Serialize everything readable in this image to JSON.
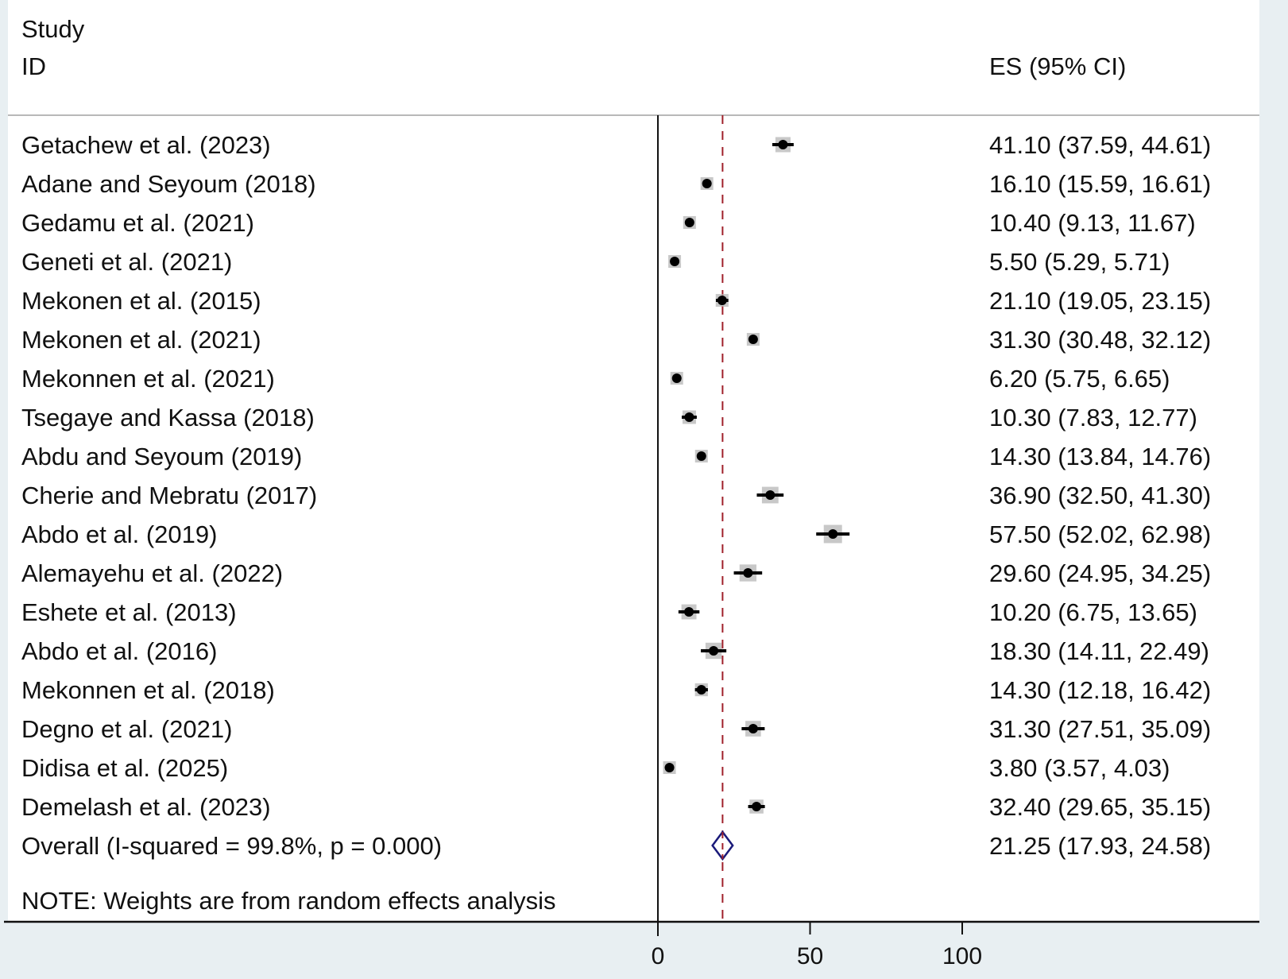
{
  "chart_data": {
    "type": "forest",
    "header": {
      "study_label_line1": "Study",
      "study_label_line2": "ID",
      "es_label": "ES (95% CI)"
    },
    "xlim": [
      0,
      100
    ],
    "x_ticks": [
      0,
      50,
      100
    ],
    "x_tick_labels": [
      "0",
      "50",
      "100"
    ],
    "null_line": 0,
    "overall_line": 21.25,
    "studies": [
      {
        "label": "Getachew et al. (2023)",
        "es": 41.1,
        "lo": 37.59,
        "hi": 44.61,
        "text": "41.10 (37.59, 44.61)"
      },
      {
        "label": "Adane and Seyoum (2018)",
        "es": 16.1,
        "lo": 15.59,
        "hi": 16.61,
        "text": "16.10 (15.59, 16.61)"
      },
      {
        "label": "Gedamu et al.  (2021)",
        "es": 10.4,
        "lo": 9.13,
        "hi": 11.67,
        "text": "10.40 (9.13, 11.67)"
      },
      {
        "label": "Geneti et al. (2021)",
        "es": 5.5,
        "lo": 5.29,
        "hi": 5.71,
        "text": "5.50 (5.29, 5.71)"
      },
      {
        "label": "Mekonen et al. (2015)",
        "es": 21.1,
        "lo": 19.05,
        "hi": 23.15,
        "text": "21.10 (19.05, 23.15)"
      },
      {
        "label": "Mekonen et al.  (2021)",
        "es": 31.3,
        "lo": 30.48,
        "hi": 32.12,
        "text": "31.30 (30.48, 32.12)"
      },
      {
        "label": "Mekonnen et al.  (2021)",
        "es": 6.2,
        "lo": 5.75,
        "hi": 6.65,
        "text": "6.20 (5.75, 6.65)"
      },
      {
        "label": "Tsegaye and Kassa (2018)",
        "es": 10.3,
        "lo": 7.83,
        "hi": 12.77,
        "text": "10.30 (7.83, 12.77)"
      },
      {
        "label": "Abdu and Seyoum (2019)",
        "es": 14.3,
        "lo": 13.84,
        "hi": 14.76,
        "text": "14.30 (13.84, 14.76)"
      },
      {
        "label": "Cherie and Mebratu (2017)",
        "es": 36.9,
        "lo": 32.5,
        "hi": 41.3,
        "text": "36.90 (32.50, 41.30)"
      },
      {
        "label": "Abdo et al.  (2019)",
        "es": 57.5,
        "lo": 52.02,
        "hi": 62.98,
        "text": "57.50 (52.02, 62.98)"
      },
      {
        "label": "Alemayehu et al. (2022)",
        "es": 29.6,
        "lo": 24.95,
        "hi": 34.25,
        "text": "29.60 (24.95, 34.25)"
      },
      {
        "label": "Eshete et al. (2013)",
        "es": 10.2,
        "lo": 6.75,
        "hi": 13.65,
        "text": "10.20 (6.75, 13.65)"
      },
      {
        "label": "Abdo et al.  (2016)",
        "es": 18.3,
        "lo": 14.11,
        "hi": 22.49,
        "text": "18.30 (14.11, 22.49)"
      },
      {
        "label": "Mekonnen et al.  (2018)",
        "es": 14.3,
        "lo": 12.18,
        "hi": 16.42,
        "text": "14.30 (12.18, 16.42)"
      },
      {
        "label": "Degno et al.  (2021)",
        "es": 31.3,
        "lo": 27.51,
        "hi": 35.09,
        "text": "31.30 (27.51, 35.09)"
      },
      {
        "label": "Didisa et al. (2025)",
        "es": 3.8,
        "lo": 3.57,
        "hi": 4.03,
        "text": "3.80 (3.57, 4.03)"
      },
      {
        "label": "Demelash et al.  (2023)",
        "es": 32.4,
        "lo": 29.65,
        "hi": 35.15,
        "text": "32.40 (29.65, 35.15)"
      }
    ],
    "overall": {
      "label": "Overall  (I-squared = 99.8%, p = 0.000)",
      "es": 21.25,
      "lo": 17.93,
      "hi": 24.58,
      "text": "21.25 (17.93, 24.58)"
    },
    "note": "NOTE: Weights are from random effects analysis",
    "colors": {
      "point": "#000000",
      "weight_box": "#b0b0b0",
      "overall_line": "#a0202a",
      "diamond": "#1a1a7a",
      "background": "#e8eff2"
    }
  }
}
